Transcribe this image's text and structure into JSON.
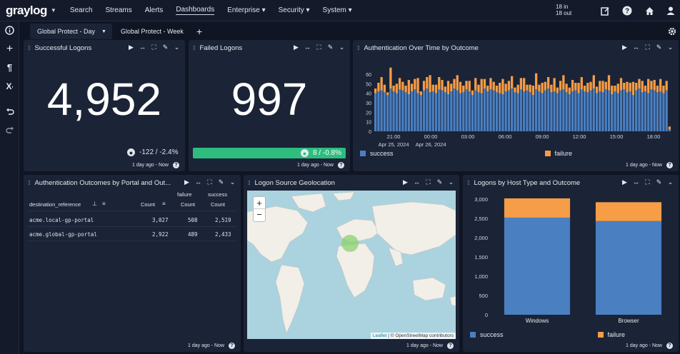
{
  "topnav": {
    "logo": "graylog",
    "items": [
      {
        "label": "Search"
      },
      {
        "label": "Streams"
      },
      {
        "label": "Alerts"
      },
      {
        "label": "Dashboards",
        "active": true
      },
      {
        "label": "Enterprise ▾"
      },
      {
        "label": "Security ▾"
      },
      {
        "label": "System ▾"
      }
    ],
    "throughput_in": "18 in",
    "throughput_out": "18 out"
  },
  "tabs": [
    {
      "label": "Global Protect - Day",
      "active": true
    },
    {
      "label": "Global Protect - Week",
      "active": false
    }
  ],
  "widgets": {
    "successful_logons": {
      "title": "Successful Logons",
      "value": "4,952",
      "trend": "-122 / -2.4%",
      "footer": "1 day ago - Now"
    },
    "failed_logons": {
      "title": "Failed Logons",
      "value": "997",
      "trend": "8 / -0.8%",
      "footer": "1 day ago - Now"
    },
    "auth_over_time": {
      "title": "Authentication Over Time by Outcome",
      "footer": "1 day ago - Now"
    },
    "outcomes_by_portal": {
      "title": "Authentication Outcomes by Portal and Out...",
      "group_header": "destination_reference",
      "col_failure": "failure",
      "col_success": "success",
      "count_label": "Count",
      "rows": [
        {
          "name": "acme.local-gp-portal",
          "count": "3,027",
          "failure": "508",
          "success": "2,519"
        },
        {
          "name": "acme.global-gp-portal",
          "count": "2,922",
          "failure": "489",
          "success": "2,433"
        }
      ],
      "footer": "1 day ago - Now"
    },
    "geolocation": {
      "title": "Logon Source Geolocation",
      "zoom_in": "+",
      "zoom_out": "−",
      "attribution_leaflet": "Leaflet",
      "attribution_osm": "| © OpenStreetMap contributors",
      "footer": "1 day ago - Now"
    },
    "by_host_type": {
      "title": "Logons by Host Type and Outcome",
      "footer": "1 day ago - Now"
    }
  },
  "colors": {
    "success": "#4a7fc1",
    "failure": "#f59d47",
    "trend_good": "#2ebd7e"
  },
  "chart_data": [
    {
      "type": "bar",
      "stacked": true,
      "title": "Authentication Over Time by Outcome",
      "x_ticks": [
        "21:00",
        "00:00",
        "03:00",
        "06:00",
        "09:00",
        "12:00",
        "15:00",
        "18:00"
      ],
      "x_date_labels": [
        "Apr 25, 2024",
        "Apr 26, 2024"
      ],
      "y_ticks": [
        "0",
        "10",
        "20",
        "30",
        "40",
        "50",
        "60"
      ],
      "ylim": [
        0,
        75
      ],
      "legend": [
        "success",
        "failure"
      ],
      "legend_position": "bottom-left",
      "series": [
        {
          "name": "success",
          "values": [
            40,
            42,
            43,
            41,
            38,
            45,
            42,
            40,
            44,
            43,
            41,
            39,
            42,
            44,
            40,
            38,
            43,
            45,
            41,
            42,
            40,
            44,
            43,
            41,
            39,
            42,
            45,
            43,
            40,
            41,
            44,
            42,
            38,
            43,
            41,
            40,
            45,
            42,
            44,
            43,
            41,
            40,
            39,
            42,
            43,
            45,
            41,
            40,
            44,
            42,
            43,
            41,
            38,
            44,
            42,
            40,
            43,
            45,
            41,
            42,
            40,
            43,
            44,
            41,
            39,
            42,
            43,
            40,
            44,
            42,
            41,
            43,
            45,
            40,
            42,
            41,
            44,
            43,
            39,
            42,
            40,
            43,
            44,
            41,
            42,
            38,
            43,
            45,
            41,
            42,
            40,
            44,
            43,
            41,
            42,
            40,
            43,
            2
          ]
        },
        {
          "name": "failure",
          "values": [
            5,
            9,
            14,
            8,
            3,
            22,
            6,
            10,
            12,
            9,
            7,
            15,
            8,
            11,
            16,
            4,
            10,
            12,
            18,
            7,
            9,
            13,
            11,
            6,
            14,
            8,
            10,
            16,
            12,
            7,
            9,
            11,
            5,
            13,
            8,
            15,
            10,
            6,
            12,
            9,
            7,
            11,
            16,
            8,
            10,
            13,
            5,
            9,
            12,
            14,
            6,
            8,
            10,
            17,
            7,
            11,
            9,
            12,
            8,
            14,
            6,
            10,
            15,
            9,
            7,
            12,
            8,
            11,
            13,
            6,
            10,
            9,
            14,
            7,
            11,
            12,
            8,
            16,
            9,
            6,
            10,
            13,
            7,
            11,
            9,
            14,
            8,
            10,
            12,
            6,
            15,
            9,
            11,
            7,
            13,
            8,
            10,
            3
          ]
        }
      ]
    },
    {
      "type": "bar",
      "stacked": true,
      "title": "Logons by Host Type and Outcome",
      "categories": [
        "Windows",
        "Browser"
      ],
      "y_ticks": [
        "0",
        "500",
        "1,000",
        "1,500",
        "2,000",
        "2,500",
        "3,000"
      ],
      "ylim": [
        0,
        3000
      ],
      "legend": [
        "success",
        "failure"
      ],
      "legend_position": "bottom-left",
      "series": [
        {
          "name": "success",
          "values": [
            2520,
            2430
          ]
        },
        {
          "name": "failure",
          "values": [
            500,
            490
          ]
        }
      ]
    }
  ]
}
